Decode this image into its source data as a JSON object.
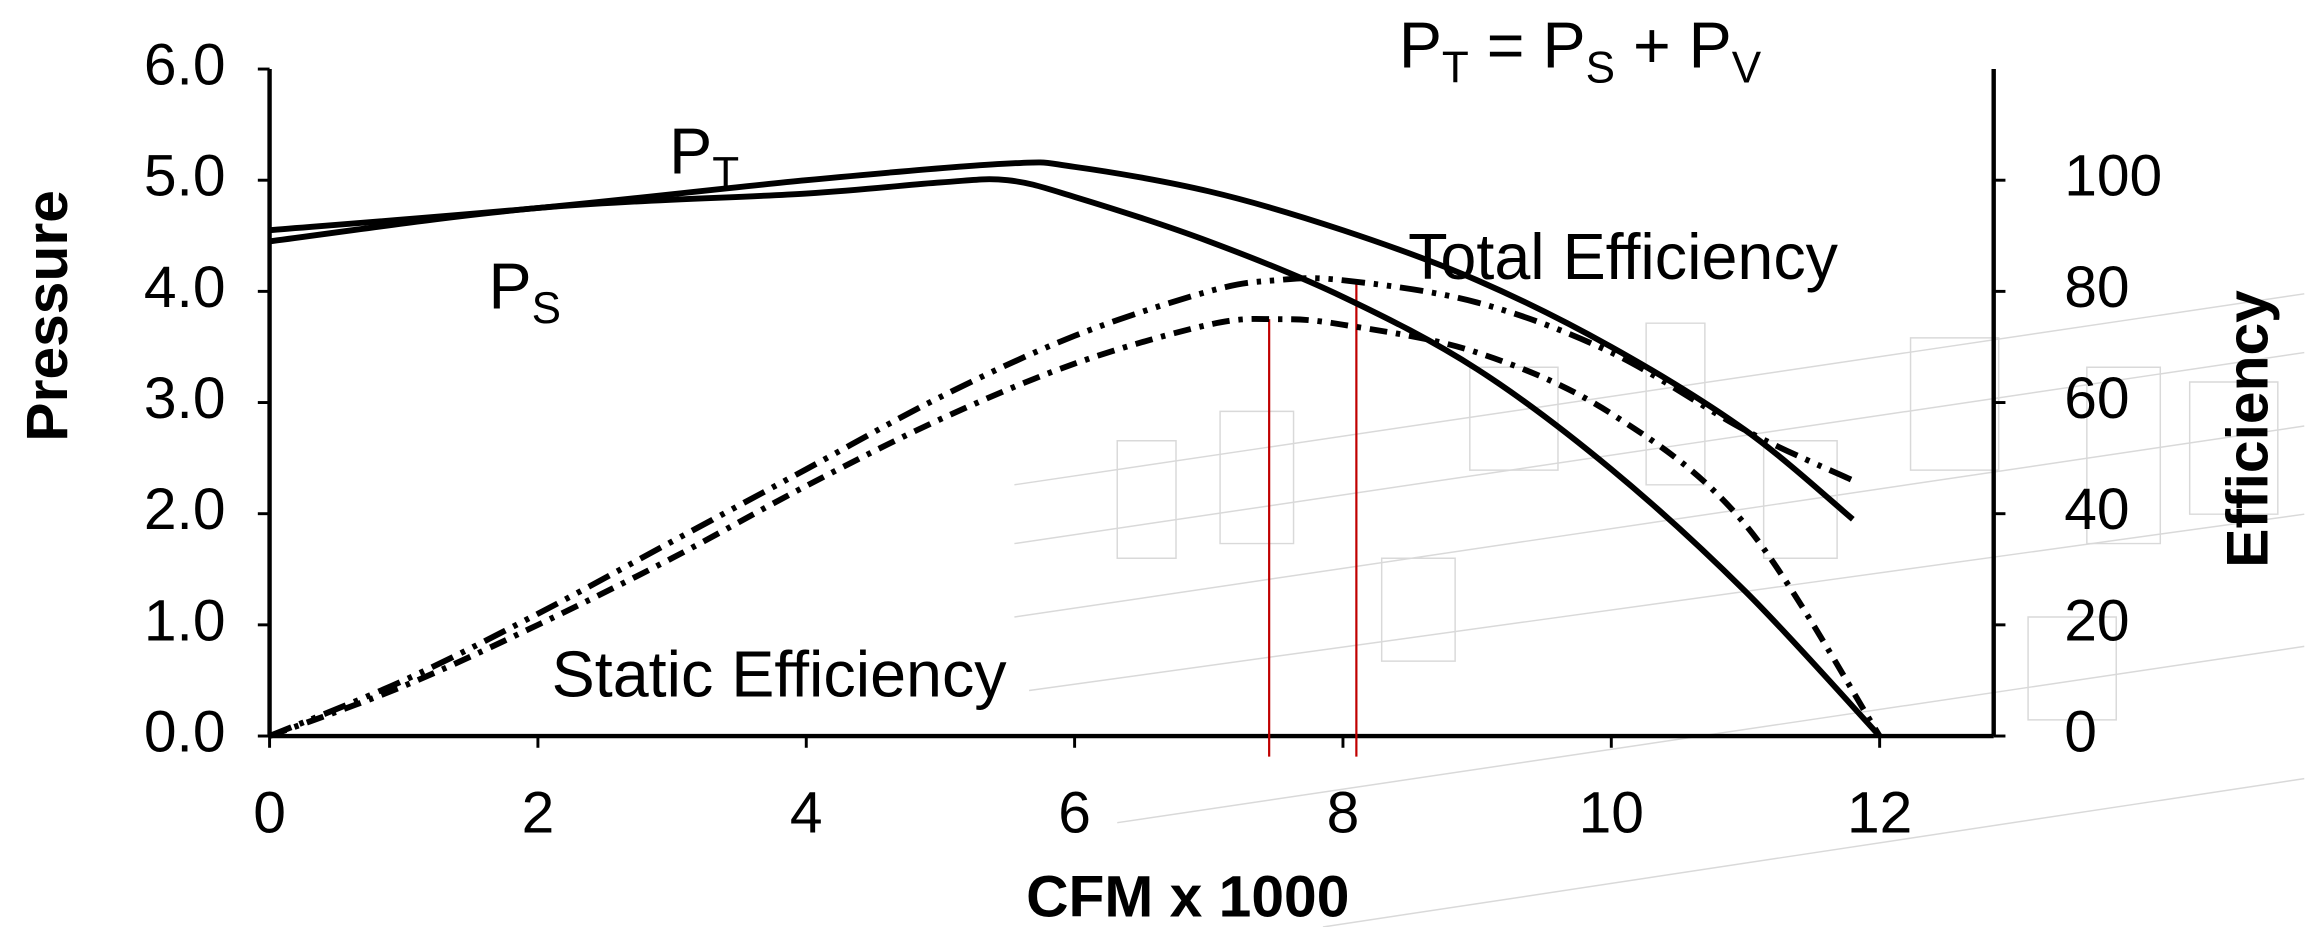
{
  "chart_data": {
    "type": "line",
    "equation": [
      "P",
      "T",
      " = P",
      "S",
      " + P",
      "V"
    ],
    "x_label": "CFM x 1000",
    "y_label": "Pressure",
    "y2_label": "Efficiency",
    "xlim": [
      0,
      12.85
    ],
    "xticks": [
      0,
      2,
      4,
      6,
      8,
      10,
      12
    ],
    "ylim": [
      0,
      6
    ],
    "yticks": [
      {
        "value": 0,
        "label": "0.0"
      },
      {
        "value": 1,
        "label": "1.0"
      },
      {
        "value": 2,
        "label": "2.0"
      },
      {
        "value": 3,
        "label": "3.0"
      },
      {
        "value": 4,
        "label": "4.0"
      },
      {
        "value": 5,
        "label": "5.0"
      },
      {
        "value": 6,
        "label": "6.0"
      }
    ],
    "y2lim": [
      0,
      120
    ],
    "y2ticks": [
      0,
      20,
      40,
      60,
      80,
      100
    ],
    "series": [
      {
        "name": "P",
        "subscript": "T",
        "color": "#000000",
        "dash": "solid",
        "x": [
          0,
          2,
          4,
          5.5,
          6,
          7,
          8,
          9,
          10,
          11,
          11.8
        ],
        "values": [
          4.55,
          4.75,
          5.0,
          5.15,
          5.12,
          4.9,
          4.55,
          4.1,
          3.5,
          2.75,
          1.95
        ]
      },
      {
        "name": "P",
        "subscript": "S",
        "color": "#000000",
        "dash": "solid",
        "x": [
          0,
          2,
          4,
          5,
          5.5,
          6,
          7,
          8,
          9,
          10,
          11,
          12
        ],
        "values": [
          4.45,
          4.75,
          4.88,
          4.98,
          5.0,
          4.85,
          4.45,
          3.95,
          3.3,
          2.4,
          1.3,
          0
        ]
      },
      {
        "name": "Total Efficiency",
        "color": "#000000",
        "dash": "dashdotdot",
        "axis": "y2",
        "x": [
          0,
          1,
          2,
          3,
          4,
          5,
          6,
          7,
          7.5,
          8,
          9,
          10,
          11,
          11.8
        ],
        "values": [
          0,
          10,
          22,
          35,
          48,
          61,
          72,
          80,
          82,
          82,
          78,
          69,
          55,
          46
        ]
      },
      {
        "name": "Static Efficiency",
        "color": "#000000",
        "dash": "dashdot",
        "axis": "y2",
        "x": [
          0,
          1,
          2,
          3,
          4,
          5,
          6,
          7,
          7.5,
          8,
          9,
          10,
          11,
          12
        ],
        "values": [
          0,
          9,
          20,
          32,
          45,
          57,
          67,
          74,
          75,
          74,
          69,
          58,
          38,
          0
        ]
      }
    ],
    "reference_lines": [
      {
        "x": 7.45,
        "y2": 75,
        "color": "#c00000"
      },
      {
        "x": 8.1,
        "y2": 82,
        "color": "#c00000"
      }
    ]
  }
}
